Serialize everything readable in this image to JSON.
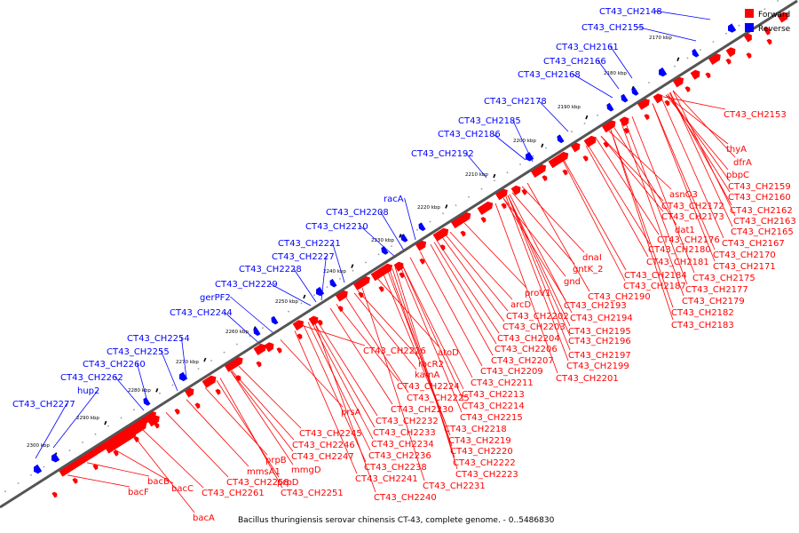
{
  "legend": {
    "forward": {
      "label": "Forward",
      "color": "#ff0000"
    },
    "reverse": {
      "label": "Reverse",
      "color": "#0000ff"
    }
  },
  "caption": "Bacillus thuringiensis serovar chinensis CT-43, complete genome. - 0..5486830",
  "ticks": [
    "2170 kbp",
    "2180 kbp",
    "2190 kbp",
    "2200 kbp",
    "2210 kbp",
    "2220 kbp",
    "2230 kbp",
    "2240 kbp",
    "2250 kbp",
    "2260 kbp",
    "2270 kbp",
    "2280 kbp",
    "2290 kbp",
    "2300 kbp"
  ],
  "reverse_labels": [
    "CT43_CH2148",
    "CT43_CH2155",
    "CT43_CH2161",
    "CT43_CH2166",
    "CT43_CH2168",
    "CT43_CH2178",
    "CT43_CH2185",
    "CT43_CH2186",
    "CT43_CH2192",
    "racA",
    "CT43_CH2208",
    "CT43_CH2210",
    "CT43_CH2221",
    "CT43_CH2227",
    "CT43_CH2228",
    "CT43_CH2229",
    "gerPF2",
    "CT43_CH2244",
    "CT43_CH2254",
    "CT43_CH2255",
    "CT43_CH2260",
    "CT43_CH2262",
    "hup2",
    "CT43_CH2277"
  ],
  "forward_labels": [
    "CT43_CH2153",
    "thyA",
    "dfrA",
    "pbpC",
    "CT43_CH2159",
    "CT43_CH2160",
    "asnO3",
    "CT43_CH2162",
    "CT43_CH2172",
    "CT43_CH2163",
    "CT43_CH2173",
    "CT43_CH2165",
    "dat1",
    "CT43_CH2167",
    "CT43_CH2176",
    "CT43_CH2170",
    "CT43_CH2180",
    "CT43_CH2171",
    "CT43_CH2181",
    "CT43_CH2175",
    "CT43_CH2184",
    "CT43_CH2177",
    "CT43_CH2187",
    "CT43_CH2179",
    "CT43_CH2190",
    "CT43_CH2182",
    "CT43_CH2183",
    "dnaI",
    "gntK_2",
    "gnd",
    "proV1",
    "CT43_CH2193",
    "arcD",
    "CT43_CH2194",
    "CT43_CH2202",
    "CT43_CH2195",
    "CT43_CH2203",
    "CT43_CH2196",
    "CT43_CH2204",
    "CT43_CH2197",
    "CT43_CH2206",
    "CT43_CH2199",
    "CT43_CH2207",
    "CT43_CH2201",
    "CT43_CH2226",
    "atoD",
    "rocR2",
    "CT43_CH2209",
    "kamA",
    "CT43_CH2211",
    "CT43_CH2224",
    "CT43_CH2213",
    "CT43_CH2225",
    "CT43_CH2214",
    "CT43_CH2230",
    "CT43_CH2215",
    "prsA",
    "CT43_CH2232",
    "CT43_CH2218",
    "CT43_CH2233",
    "CT43_CH2219",
    "CT43_CH2245",
    "CT43_CH2234",
    "CT43_CH2220",
    "CT43_CH2246",
    "CT43_CH2236",
    "CT43_CH2222",
    "CT43_CH2247",
    "CT43_CH2238",
    "CT43_CH2223",
    "prpB",
    "mmgD",
    "CT43_CH2241",
    "CT43_CH2231",
    "mmsA1",
    "CT43_CH2258",
    "prpD",
    "CT43_CH2240",
    "bacB",
    "CT43_CH2261",
    "CT43_CH2251",
    "bacF",
    "bacC",
    "bacA"
  ]
}
